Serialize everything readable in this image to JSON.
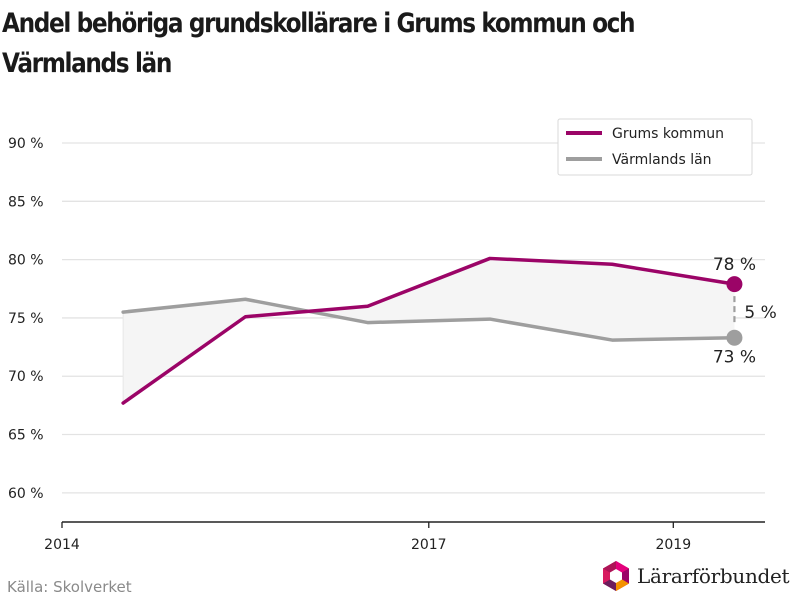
{
  "title_lines": [
    "Andel behöriga grundskollärare i Grums kommun och",
    "Värmlands län"
  ],
  "source": "Källa: Skolverket",
  "logo": {
    "text": "Lärarförbundet",
    "icon": "lararforbundet-hexagon-logo-icon"
  },
  "colors": {
    "grums": "#9b0467",
    "varmland": "#9e9e9e",
    "gap_fill": "#f5f5f5",
    "grid": "#e3e3e3",
    "axis": "#222222"
  },
  "chart_data": {
    "type": "line",
    "title": "Andel behöriga grundskollärare i Grums kommun och Värmlands län",
    "x": [
      2014.5,
      2015.5,
      2016.5,
      2017.5,
      2018.5,
      2019.5
    ],
    "xlim": [
      2014,
      2019.75
    ],
    "xticks": [
      2014,
      2017,
      2019
    ],
    "ylim": [
      57.5,
      93
    ],
    "yticks": [
      60,
      65,
      70,
      75,
      80,
      85,
      90
    ],
    "ytick_suffix": " %",
    "series": [
      {
        "name": "Grums kommun",
        "values": [
          67.7,
          75.1,
          76.0,
          80.1,
          79.6,
          77.9
        ]
      },
      {
        "name": "Värmlands län",
        "values": [
          75.5,
          76.6,
          74.6,
          74.9,
          73.1,
          73.3
        ]
      }
    ],
    "end_labels": {
      "grums": "78 %",
      "varmland": "73 %",
      "diff": "5 %"
    },
    "legend": "top-right",
    "grid": true
  }
}
